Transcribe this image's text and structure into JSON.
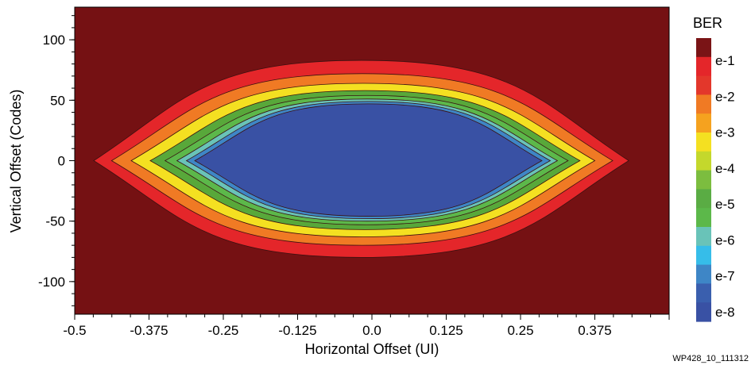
{
  "chart_data": {
    "type": "heatmap",
    "title": "",
    "xlabel": "Horizontal Offset (UI)",
    "ylabel": "Vertical Offset (Codes)",
    "xlim": [
      -0.5,
      0.5
    ],
    "ylim": [
      -127,
      127
    ],
    "x_ticks": [
      -0.5,
      -0.375,
      -0.25,
      -0.125,
      0.0,
      0.125,
      0.25,
      0.375
    ],
    "x_tick_labels": [
      "-0.5",
      "-0.375",
      "-0.25",
      "-0.125",
      "0.0",
      "0.125",
      "0.25",
      "0.375"
    ],
    "y_ticks": [
      100,
      50,
      0,
      -50,
      -100
    ],
    "y_tick_labels": [
      "100",
      "50",
      "0",
      "-50",
      "-100"
    ],
    "background_color": "#751113",
    "eye_contours": [
      {
        "ber": "e-1",
        "color": "#e4262a",
        "x_range": [
          -0.468,
          0.432
        ],
        "top": 83,
        "bottom": -80
      },
      {
        "ber": "e-2",
        "color": "#f07a24",
        "x_range": [
          -0.438,
          0.405
        ],
        "top": 72,
        "bottom": -70
      },
      {
        "ber": "e-3",
        "color": "#f4e021",
        "x_range": [
          -0.405,
          0.375
        ],
        "top": 64,
        "bottom": -63
      },
      {
        "ber": "e-4",
        "color": "#58a83a",
        "x_range": [
          -0.373,
          0.35
        ],
        "top": 58,
        "bottom": -57
      },
      {
        "ber": "e-5",
        "color": "#5cb84a",
        "x_range": [
          -0.348,
          0.33
        ],
        "top": 54,
        "bottom": -53
      },
      {
        "ber": "e-6",
        "color": "#69c3b8",
        "x_range": [
          -0.328,
          0.312
        ],
        "top": 51,
        "bottom": -50
      },
      {
        "ber": "e-7",
        "color": "#3e86c6",
        "x_range": [
          -0.312,
          0.3
        ],
        "top": 49,
        "bottom": -48
      },
      {
        "ber": "e-8",
        "color": "#3951a4",
        "x_range": [
          -0.298,
          0.286
        ],
        "top": 47,
        "bottom": -46
      }
    ],
    "colorbar": {
      "title": "BER",
      "labels": [
        "e-1",
        "e-2",
        "e-3",
        "e-4",
        "e-5",
        "e-6",
        "e-7",
        "e-8"
      ],
      "colors": [
        "#7a1416",
        "#e4262a",
        "#e3372b",
        "#f07a24",
        "#f5a21f",
        "#f4e021",
        "#c4d82c",
        "#7cbd3f",
        "#5aac44",
        "#5cb84a",
        "#69c3b8",
        "#36bde9",
        "#3e86c6",
        "#3a5fae",
        "#3951a4"
      ]
    }
  },
  "figure_id": "WP428_10_111312"
}
